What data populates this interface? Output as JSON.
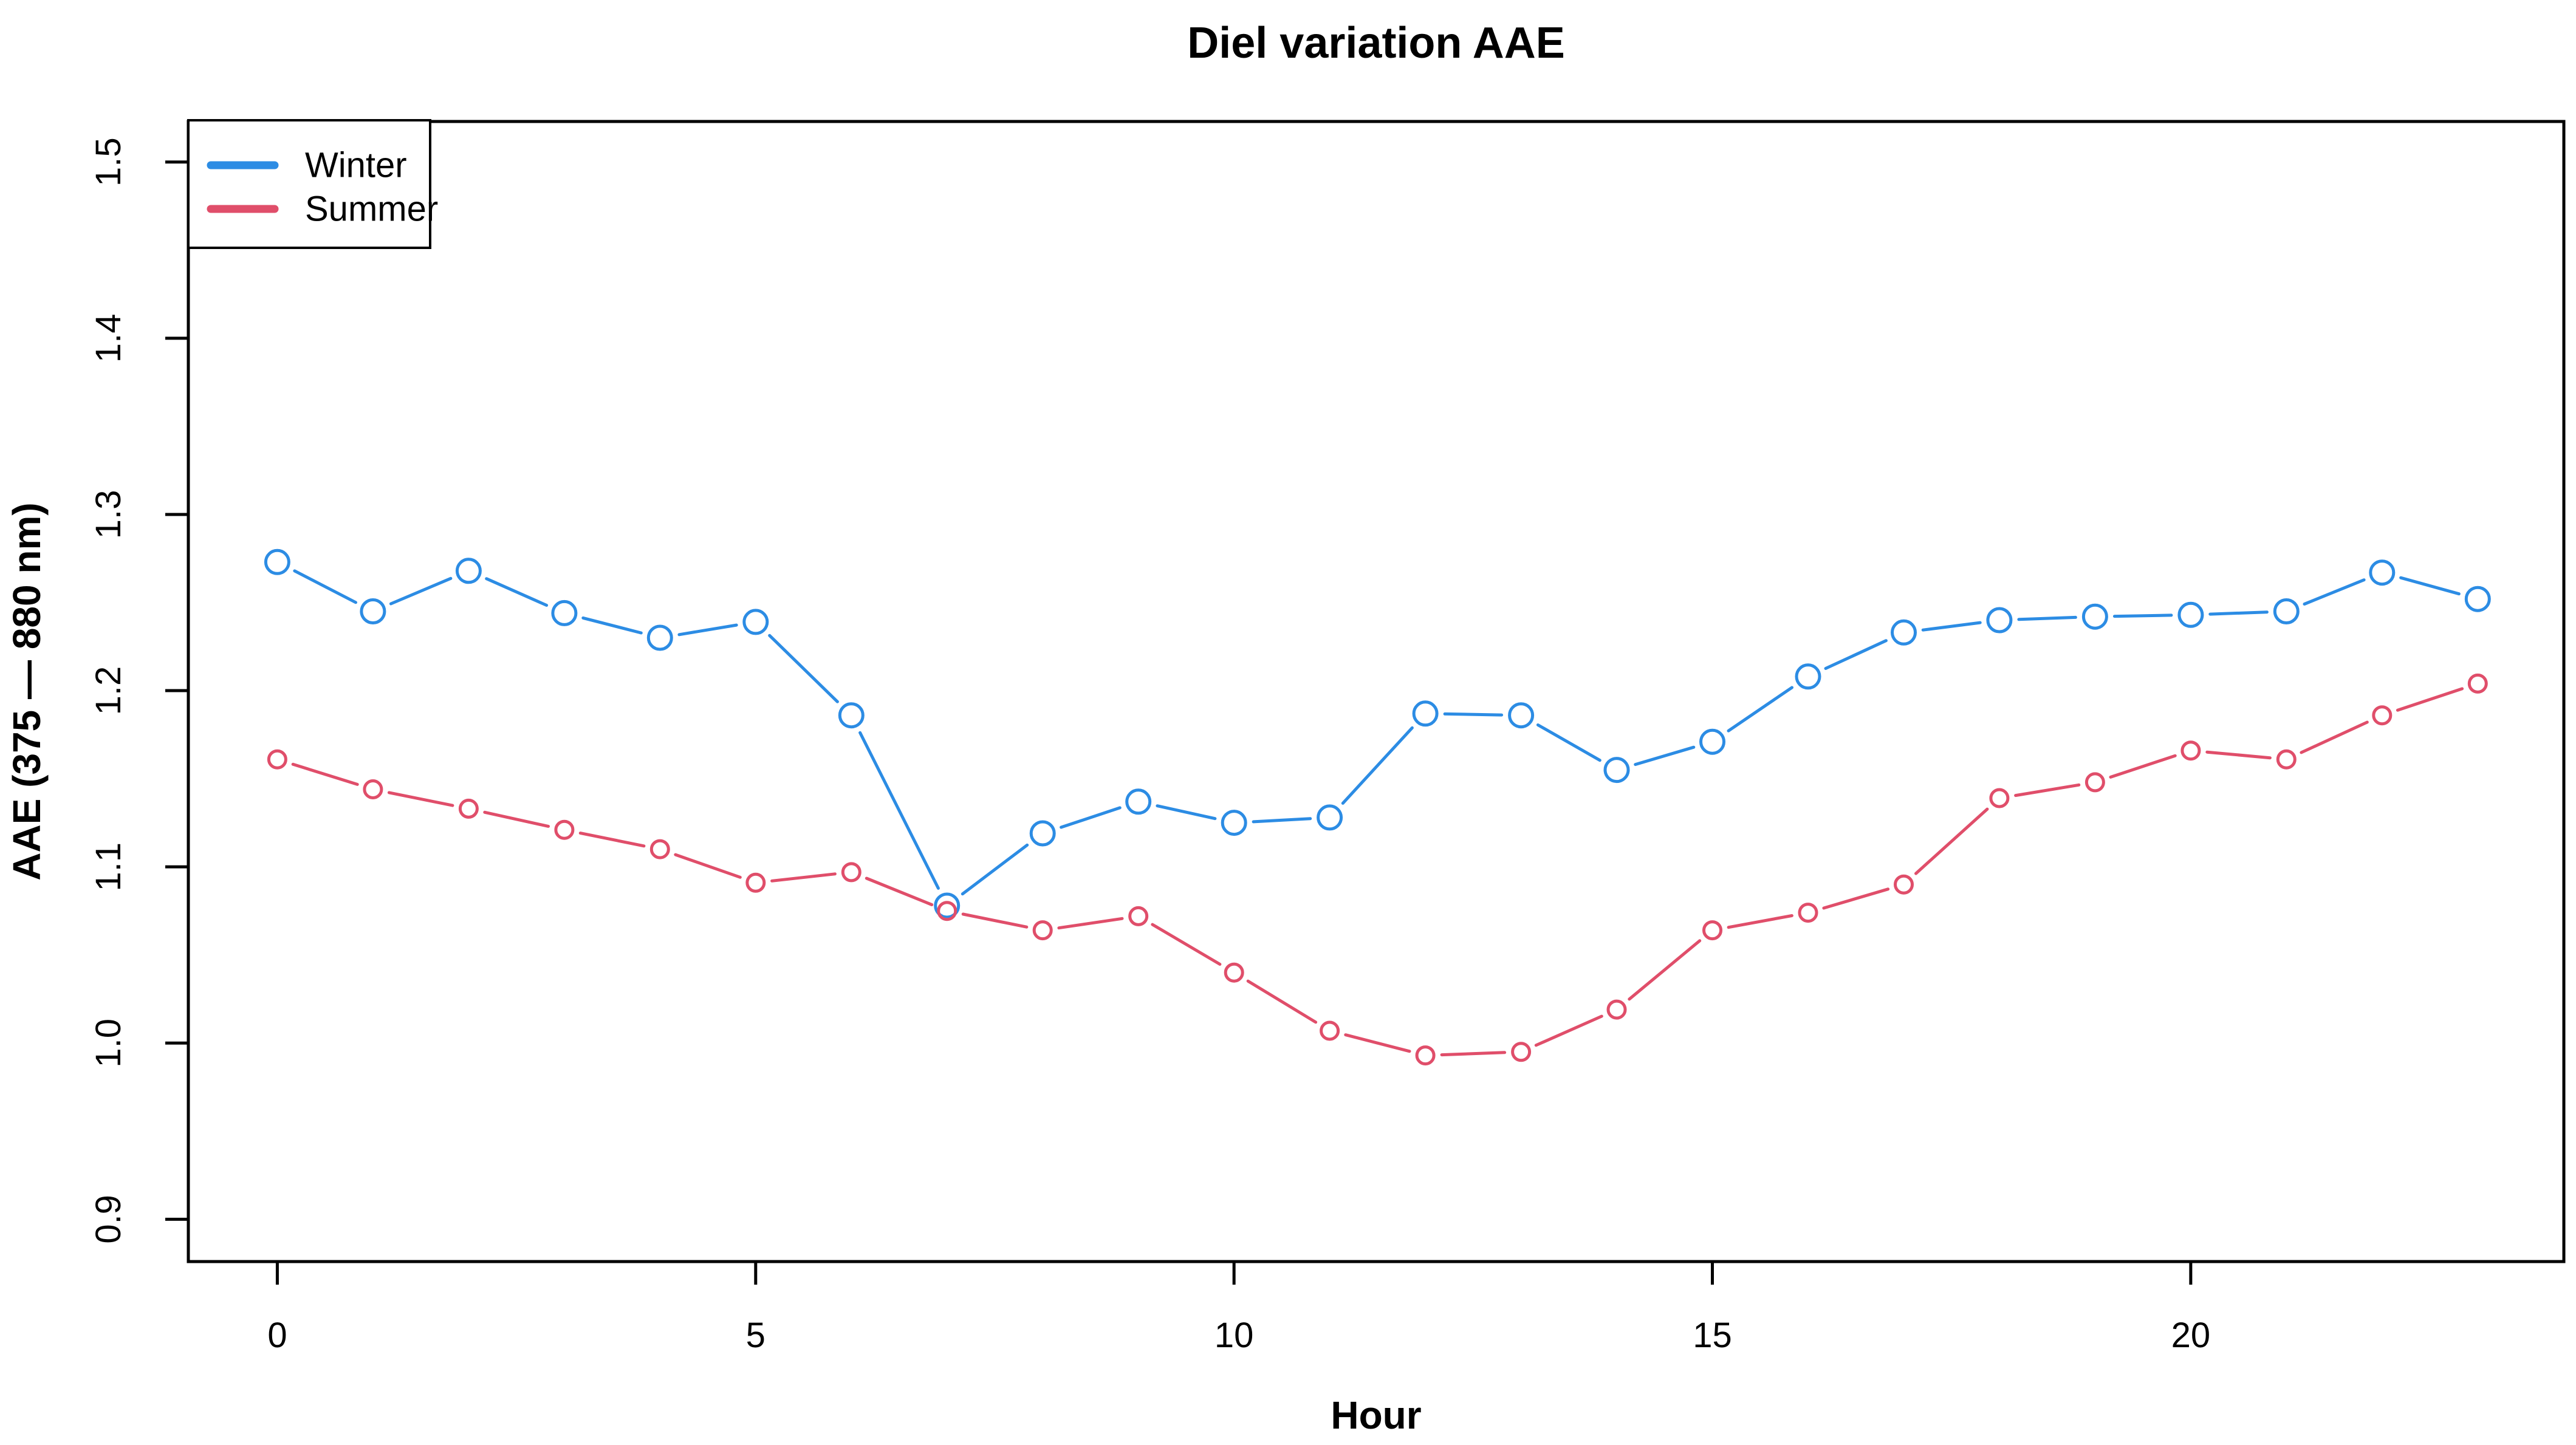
{
  "page": {
    "background": "#ffffff",
    "frame_color": "#000000"
  },
  "chart_data": {
    "type": "line",
    "title": "Diel variation AAE",
    "xlabel": "Hour",
    "ylabel": "AAE (375 — 880 nm)",
    "x": [
      0,
      1,
      2,
      3,
      4,
      5,
      6,
      7,
      8,
      9,
      10,
      11,
      12,
      13,
      14,
      15,
      16,
      17,
      18,
      19,
      20,
      21,
      22,
      23
    ],
    "series": [
      {
        "name": "Winter",
        "color": "#2C8CE4",
        "marker": "open-circle",
        "values": [
          1.273,
          1.245,
          1.268,
          1.244,
          1.23,
          1.239,
          1.186,
          1.078,
          1.119,
          1.137,
          1.125,
          1.128,
          1.187,
          1.186,
          1.155,
          1.171,
          1.208,
          1.233,
          1.24,
          1.242,
          1.243,
          1.245,
          1.267,
          1.252
        ]
      },
      {
        "name": "Summer",
        "color": "#E04E6A",
        "marker": "open-circle",
        "values": [
          1.161,
          1.144,
          1.133,
          1.121,
          1.11,
          1.091,
          1.097,
          1.075,
          1.064,
          1.072,
          1.04,
          1.007,
          0.993,
          0.995,
          1.019,
          1.064,
          1.074,
          1.09,
          1.139,
          1.148,
          1.166,
          1.161,
          1.186,
          1.204
        ]
      }
    ],
    "x_ticks": [
      0,
      5,
      10,
      15,
      20
    ],
    "y_ticks": [
      "0.9",
      "1.0",
      "1.1",
      "1.2",
      "1.3",
      "1.4",
      "1.5"
    ],
    "xlim": [
      -0.93,
      23.9
    ],
    "ylim": [
      0.876,
      1.523
    ],
    "grid": false,
    "legend_position": "top-left",
    "line_type": "points-with-segments"
  }
}
